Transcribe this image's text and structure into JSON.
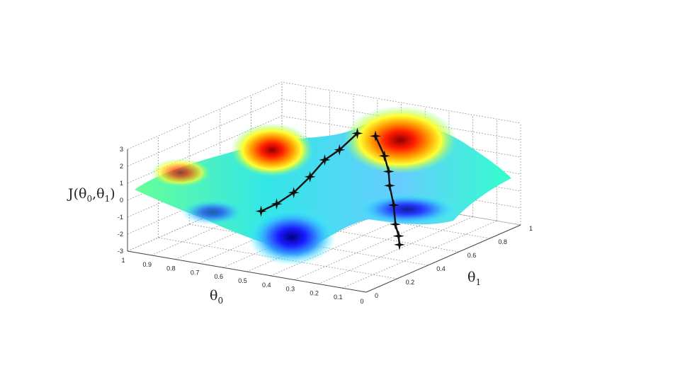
{
  "chart_data": {
    "type": "surface",
    "title": "",
    "zlabel": {
      "main": "J(θ",
      "sub0": "0",
      "sep": ",θ",
      "sub1": "1",
      "close": ")"
    },
    "xlabel": {
      "main": "θ",
      "sub": "0"
    },
    "ylabel": {
      "main": "θ",
      "sub": "1"
    },
    "xlim": [
      0,
      1
    ],
    "ylim": [
      0,
      1
    ],
    "zlim": [
      -3,
      3
    ],
    "x_ticks": [
      "0",
      "0.1",
      "0.2",
      "0.3",
      "0.4",
      "0.5",
      "0.6",
      "0.7",
      "0.8",
      "0.9",
      "1"
    ],
    "y_ticks": [
      "0",
      "0.2",
      "0.4",
      "0.6",
      "0.8",
      "1"
    ],
    "z_ticks": [
      "-3",
      "-2",
      "-1",
      "0",
      "1",
      "2",
      "3"
    ],
    "grid": true,
    "colormap": "jet",
    "surface_peaks": [
      {
        "x": 0.5,
        "y": 0.22,
        "z": 2.9
      },
      {
        "x": 0.62,
        "y": 0.78,
        "z": 3.0
      }
    ],
    "surface_valleys": [
      {
        "x": 0.22,
        "y": 0.45,
        "z": -2.9
      },
      {
        "x": 0.45,
        "y": 0.75,
        "z": -1.6
      }
    ],
    "series": [
      {
        "marker": "star",
        "points": [
          {
            "x": 0.44,
            "y": 0.26,
            "z": 2.2
          },
          {
            "x": 0.37,
            "y": 0.31,
            "z": 1.4
          },
          {
            "x": 0.32,
            "y": 0.36,
            "z": 0.8
          },
          {
            "x": 0.29,
            "y": 0.4,
            "z": 0.2
          },
          {
            "x": 0.26,
            "y": 0.42,
            "z": -0.8
          },
          {
            "x": 0.24,
            "y": 0.44,
            "z": -1.8
          },
          {
            "x": 0.22,
            "y": 0.45,
            "z": -2.4
          },
          {
            "x": 0.21,
            "y": 0.46,
            "z": -2.85
          }
        ]
      },
      {
        "marker": "star",
        "points": [
          {
            "x": 0.49,
            "y": 0.3,
            "z": 2.4
          },
          {
            "x": 0.5,
            "y": 0.4,
            "z": 1.8
          },
          {
            "x": 0.51,
            "y": 0.48,
            "z": 1.5
          },
          {
            "x": 0.52,
            "y": 0.56,
            "z": 0.8
          },
          {
            "x": 0.53,
            "y": 0.65,
            "z": 0.2
          },
          {
            "x": 0.55,
            "y": 0.73,
            "z": -0.2
          },
          {
            "x": 0.57,
            "y": 0.8,
            "z": -0.4
          }
        ]
      }
    ]
  }
}
